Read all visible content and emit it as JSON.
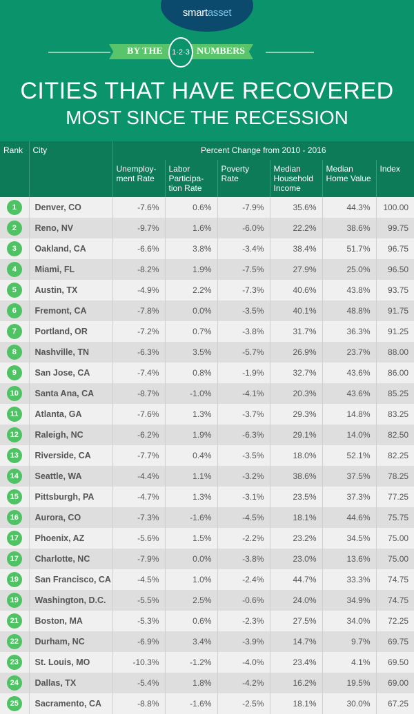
{
  "logo": {
    "text_a": "smart",
    "text_b": "asset"
  },
  "banner": {
    "left": "BY THE",
    "badge": "1·2·3",
    "right": "NUMBERS"
  },
  "title": {
    "line1": "CITIES THAT HAVE RECOVERED",
    "line2": "MOST SINCE THE RECESSION"
  },
  "colors": {
    "background": "#0b936b",
    "header": "#0d7b58",
    "rank_badge": "#4fc264",
    "logo": "#0b4a6c"
  },
  "table": {
    "headers": {
      "rank": "Rank",
      "city": "City",
      "group": "Percent Change from 2010 - 2016",
      "columns": [
        "Unemploy-ment Rate",
        "Labor Participa-tion Rate",
        "Poverty Rate",
        "Median Household Income",
        "Median Home Value",
        "Index"
      ]
    },
    "rows": [
      [
        "1",
        "Denver, CO",
        "-7.6%",
        "0.6%",
        "-7.9%",
        "35.6%",
        "44.3%",
        "100.00"
      ],
      [
        "2",
        "Reno, NV",
        "-9.7%",
        "1.6%",
        "-6.0%",
        "22.2%",
        "38.6%",
        "99.75"
      ],
      [
        "3",
        "Oakland, CA",
        "-6.6%",
        "3.8%",
        "-3.4%",
        "38.4%",
        "51.7%",
        "96.75"
      ],
      [
        "4",
        "Miami, FL",
        "-8.2%",
        "1.9%",
        "-7.5%",
        "27.9%",
        "25.0%",
        "96.50"
      ],
      [
        "5",
        "Austin, TX",
        "-4.9%",
        "2.2%",
        "-7.3%",
        "40.6%",
        "43.8%",
        "93.75"
      ],
      [
        "6",
        "Fremont, CA",
        "-7.8%",
        "0.0%",
        "-3.5%",
        "40.1%",
        "48.8%",
        "91.75"
      ],
      [
        "7",
        "Portland, OR",
        "-7.2%",
        "0.7%",
        "-3.8%",
        "31.7%",
        "36.3%",
        "91.25"
      ],
      [
        "8",
        "Nashville, TN",
        "-6.3%",
        "3.5%",
        "-5.7%",
        "26.9%",
        "23.7%",
        "88.00"
      ],
      [
        "9",
        "San Jose, CA",
        "-7.4%",
        "0.8%",
        "-1.9%",
        "32.7%",
        "43.6%",
        "86.00"
      ],
      [
        "10",
        "Santa Ana, CA",
        "-8.7%",
        "-1.0%",
        "-4.1%",
        "20.3%",
        "43.6%",
        "85.25"
      ],
      [
        "11",
        "Atlanta, GA",
        "-7.6%",
        "1.3%",
        "-3.7%",
        "29.3%",
        "14.8%",
        "83.25"
      ],
      [
        "12",
        "Raleigh, NC",
        "-6.2%",
        "1.9%",
        "-6.3%",
        "29.1%",
        "14.0%",
        "82.50"
      ],
      [
        "13",
        "Riverside, CA",
        "-7.7%",
        "0.4%",
        "-3.5%",
        "18.0%",
        "52.1%",
        "82.25"
      ],
      [
        "14",
        "Seattle, WA",
        "-4.4%",
        "1.1%",
        "-3.2%",
        "38.6%",
        "37.5%",
        "78.25"
      ],
      [
        "15",
        "Pittsburgh, PA",
        "-4.7%",
        "1.3%",
        "-3.1%",
        "23.5%",
        "37.3%",
        "77.25"
      ],
      [
        "16",
        "Aurora, CO",
        "-7.3%",
        "-1.6%",
        "-4.5%",
        "18.1%",
        "44.6%",
        "75.75"
      ],
      [
        "17",
        "Phoenix, AZ",
        "-5.6%",
        "1.5%",
        "-2.2%",
        "23.2%",
        "34.5%",
        "75.00"
      ],
      [
        "17",
        "Charlotte, NC",
        "-7.9%",
        "0.0%",
        "-3.8%",
        "23.0%",
        "13.6%",
        "75.00"
      ],
      [
        "19",
        "San Francisco, CA",
        "-4.5%",
        "1.0%",
        "-2.4%",
        "44.7%",
        "33.3%",
        "74.75"
      ],
      [
        "19",
        "Washington, D.C.",
        "-5.5%",
        "2.5%",
        "-0.6%",
        "24.0%",
        "34.9%",
        "74.75"
      ],
      [
        "21",
        "Boston, MA",
        "-5.3%",
        "0.6%",
        "-2.3%",
        "27.5%",
        "34.0%",
        "72.25"
      ],
      [
        "22",
        "Durham, NC",
        "-6.9%",
        "3.4%",
        "-3.9%",
        "14.7%",
        "9.7%",
        "69.75"
      ],
      [
        "23",
        "St. Louis, MO",
        "-10.3%",
        "-1.2%",
        "-4.0%",
        "23.4%",
        "4.1%",
        "69.50"
      ],
      [
        "24",
        "Dallas, TX",
        "-5.4%",
        "1.8%",
        "-4.2%",
        "16.2%",
        "19.5%",
        "69.00"
      ],
      [
        "25",
        "Sacramento, CA",
        "-8.8%",
        "-1.6%",
        "-2.5%",
        "18.1%",
        "30.0%",
        "67.25"
      ]
    ]
  }
}
